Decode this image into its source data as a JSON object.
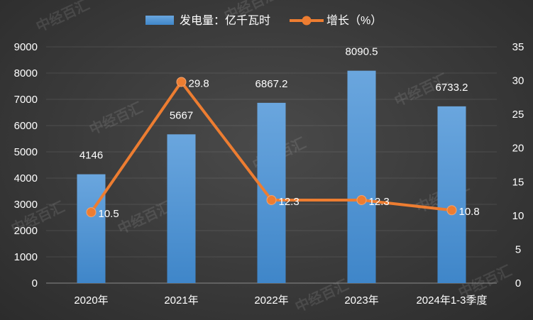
{
  "chart_data": {
    "type": "bar",
    "categories": [
      "2020年",
      "2021年",
      "2022年",
      "2023年",
      "2024年1-3季度"
    ],
    "series": [
      {
        "name": "发电量：亿千瓦时",
        "type": "bar",
        "axis": "left",
        "values": [
          4146,
          5667,
          6867.2,
          8090.5,
          6733.2
        ],
        "labels": [
          "4146",
          "5667",
          "6867.2",
          "8090.5",
          "6733.2"
        ],
        "color": "#5b9bd5"
      },
      {
        "name": "增长（%）",
        "type": "line",
        "axis": "right",
        "values": [
          10.5,
          29.8,
          12.3,
          12.3,
          10.8
        ],
        "labels": [
          "10.5",
          "29.8",
          "12.3",
          "12.3",
          "10.8"
        ],
        "color": "#ed7d31"
      }
    ],
    "ylim_left": [
      0,
      9000
    ],
    "ylim_right": [
      0,
      35
    ],
    "left_ticks": [
      0,
      1000,
      2000,
      3000,
      4000,
      5000,
      6000,
      7000,
      8000,
      9000
    ],
    "right_ticks": [
      0,
      5,
      10,
      15,
      20,
      25,
      30,
      35
    ],
    "legend_position": "top-center",
    "grid": true
  },
  "watermark": "中经百汇"
}
